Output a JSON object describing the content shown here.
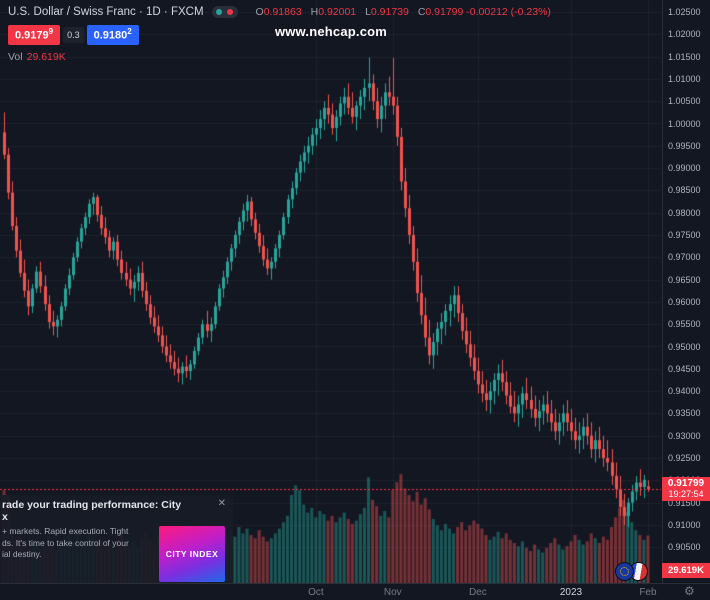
{
  "header": {
    "symbol_title": "U.S. Dollar / Swiss Franc · 1D · FXCM",
    "ohlc": {
      "o_label": "O",
      "o": "0.91863",
      "h_label": "H",
      "h": "0.92001",
      "l_label": "L",
      "l": "0.91739",
      "c_label": "C",
      "c": "0.91799",
      "change": "-0.00212 (-0.23%)"
    },
    "bid": "0.9179",
    "bid_sup": "9",
    "spread": "0.3",
    "ask": "0.9180",
    "ask_sup": "2",
    "vol_label": "Vol",
    "vol_value": "29.619K"
  },
  "watermark": "www.nehcap.com",
  "price_axis": {
    "ticks": [
      "1.02500",
      "1.02000",
      "1.01500",
      "1.01000",
      "1.00500",
      "1.00000",
      "0.99500",
      "0.99000",
      "0.98500",
      "0.98000",
      "0.97500",
      "0.97000",
      "0.96500",
      "0.96000",
      "0.95500",
      "0.95000",
      "0.94500",
      "0.94000",
      "0.93500",
      "0.93000",
      "0.92500",
      "0.92000",
      "0.91500",
      "0.91000",
      "0.90500"
    ],
    "current_price": "0.91799",
    "countdown": "19:27:54",
    "volume_badge": "29.619K"
  },
  "time_axis": {
    "ticks": [
      {
        "label": "Oct",
        "candle_index": 77
      },
      {
        "label": "Nov",
        "candle_index": 96
      },
      {
        "label": "Dec",
        "candle_index": 117
      },
      {
        "label": "2023",
        "candle_index": 140
      },
      {
        "label": "Feb",
        "candle_index": 159
      }
    ]
  },
  "ad": {
    "title_lines": [
      "rade your trading performance: City",
      "x"
    ],
    "body_lines": [
      "+ markets. Rapid execution. Tight",
      "ds. It's time to take control of your",
      "ial destiny."
    ],
    "logo_text": "CITY INDEX",
    "close_label": "✕"
  },
  "icons": {
    "gear": "⚙"
  },
  "colors": {
    "bg": "#131722",
    "up": "#26a69a",
    "down": "#ef5350",
    "accent_red": "#f23645",
    "accent_blue": "#2962ff",
    "grid": "rgba(134,142,158,0.09)"
  },
  "chart_data": {
    "type": "candlestick",
    "symbol": "USDCHF",
    "timeframe": "1D",
    "ylim": [
      0.905,
      1.025
    ],
    "price_step": 0.005,
    "candles": [
      [
        0.998,
        1.0025,
        0.992,
        0.993,
        58
      ],
      [
        0.993,
        0.9945,
        0.983,
        0.9845,
        55
      ],
      [
        0.9845,
        0.987,
        0.976,
        0.977,
        33
      ],
      [
        0.977,
        0.979,
        0.97,
        0.9715,
        28
      ],
      [
        0.9715,
        0.974,
        0.9655,
        0.9665,
        31
      ],
      [
        0.9665,
        0.9695,
        0.961,
        0.9625,
        26
      ],
      [
        0.9625,
        0.965,
        0.957,
        0.959,
        24
      ],
      [
        0.959,
        0.964,
        0.9575,
        0.963,
        22
      ],
      [
        0.963,
        0.968,
        0.962,
        0.9668,
        27
      ],
      [
        0.9668,
        0.969,
        0.962,
        0.9635,
        21
      ],
      [
        0.9635,
        0.966,
        0.958,
        0.9595,
        25
      ],
      [
        0.9595,
        0.9615,
        0.954,
        0.9555,
        29
      ],
      [
        0.9555,
        0.958,
        0.9525,
        0.9545,
        23
      ],
      [
        0.9545,
        0.957,
        0.952,
        0.956,
        20
      ],
      [
        0.956,
        0.96,
        0.9545,
        0.959,
        24
      ],
      [
        0.959,
        0.964,
        0.958,
        0.963,
        28
      ],
      [
        0.963,
        0.9675,
        0.9615,
        0.966,
        30
      ],
      [
        0.966,
        0.971,
        0.965,
        0.97,
        26
      ],
      [
        0.97,
        0.9745,
        0.969,
        0.9735,
        32
      ],
      [
        0.9735,
        0.9775,
        0.972,
        0.9765,
        27
      ],
      [
        0.9765,
        0.98,
        0.975,
        0.979,
        25
      ],
      [
        0.979,
        0.983,
        0.9775,
        0.982,
        31
      ],
      [
        0.982,
        0.9845,
        0.9795,
        0.9835,
        29
      ],
      [
        0.9835,
        0.984,
        0.978,
        0.9795,
        26
      ],
      [
        0.9795,
        0.9815,
        0.975,
        0.9765,
        28
      ],
      [
        0.9765,
        0.979,
        0.973,
        0.9745,
        22
      ],
      [
        0.9745,
        0.976,
        0.97,
        0.9715,
        25
      ],
      [
        0.9715,
        0.9745,
        0.9695,
        0.9735,
        21
      ],
      [
        0.9735,
        0.975,
        0.968,
        0.9695,
        27
      ],
      [
        0.9695,
        0.9715,
        0.965,
        0.9665,
        30
      ],
      [
        0.9665,
        0.969,
        0.9635,
        0.965,
        24
      ],
      [
        0.965,
        0.9675,
        0.9615,
        0.963,
        23
      ],
      [
        0.963,
        0.966,
        0.96,
        0.9645,
        26
      ],
      [
        0.9645,
        0.968,
        0.9625,
        0.9665,
        22
      ],
      [
        0.9665,
        0.969,
        0.961,
        0.9625,
        28
      ],
      [
        0.9625,
        0.9645,
        0.958,
        0.9595,
        31
      ],
      [
        0.9595,
        0.9615,
        0.955,
        0.9565,
        27
      ],
      [
        0.9565,
        0.959,
        0.953,
        0.9545,
        24
      ],
      [
        0.9545,
        0.957,
        0.951,
        0.9525,
        29
      ],
      [
        0.9525,
        0.9545,
        0.9485,
        0.95,
        33
      ],
      [
        0.95,
        0.9525,
        0.9465,
        0.948,
        28
      ],
      [
        0.948,
        0.9505,
        0.945,
        0.9465,
        25
      ],
      [
        0.9465,
        0.949,
        0.9435,
        0.945,
        27
      ],
      [
        0.945,
        0.9475,
        0.942,
        0.944,
        30
      ],
      [
        0.944,
        0.9465,
        0.9415,
        0.9455,
        23
      ],
      [
        0.9455,
        0.948,
        0.943,
        0.9445,
        21
      ],
      [
        0.9445,
        0.947,
        0.9425,
        0.946,
        24
      ],
      [
        0.946,
        0.95,
        0.945,
        0.949,
        27
      ],
      [
        0.949,
        0.953,
        0.948,
        0.952,
        30
      ],
      [
        0.952,
        0.956,
        0.9505,
        0.955,
        26
      ],
      [
        0.955,
        0.958,
        0.952,
        0.9535,
        23
      ],
      [
        0.9535,
        0.9565,
        0.951,
        0.955,
        25
      ],
      [
        0.955,
        0.96,
        0.954,
        0.959,
        28
      ],
      [
        0.959,
        0.964,
        0.958,
        0.963,
        32
      ],
      [
        0.963,
        0.967,
        0.961,
        0.9655,
        27
      ],
      [
        0.9655,
        0.97,
        0.964,
        0.969,
        30
      ],
      [
        0.969,
        0.973,
        0.967,
        0.972,
        33
      ],
      [
        0.972,
        0.976,
        0.97,
        0.975,
        29
      ],
      [
        0.975,
        0.979,
        0.973,
        0.978,
        35
      ],
      [
        0.978,
        0.982,
        0.976,
        0.9805,
        31
      ],
      [
        0.9805,
        0.984,
        0.978,
        0.9825,
        34
      ],
      [
        0.9825,
        0.9835,
        0.977,
        0.9785,
        30
      ],
      [
        0.9785,
        0.98,
        0.974,
        0.9755,
        28
      ],
      [
        0.9755,
        0.9775,
        0.971,
        0.9725,
        33
      ],
      [
        0.9725,
        0.975,
        0.968,
        0.9695,
        29
      ],
      [
        0.9695,
        0.972,
        0.966,
        0.9675,
        26
      ],
      [
        0.9675,
        0.97,
        0.965,
        0.969,
        28
      ],
      [
        0.969,
        0.973,
        0.9675,
        0.972,
        31
      ],
      [
        0.972,
        0.976,
        0.97,
        0.975,
        34
      ],
      [
        0.975,
        0.98,
        0.974,
        0.979,
        38
      ],
      [
        0.979,
        0.984,
        0.9775,
        0.983,
        42
      ],
      [
        0.983,
        0.987,
        0.981,
        0.9855,
        55
      ],
      [
        0.9855,
        0.99,
        0.984,
        0.989,
        61
      ],
      [
        0.989,
        0.993,
        0.987,
        0.9915,
        58
      ],
      [
        0.9915,
        0.995,
        0.989,
        0.9935,
        49
      ],
      [
        0.9935,
        0.997,
        0.991,
        0.995,
        44
      ],
      [
        0.995,
        0.999,
        0.993,
        0.9975,
        47
      ],
      [
        0.9975,
        1.001,
        0.995,
        0.999,
        41
      ],
      [
        0.999,
        1.003,
        0.9965,
        1.001,
        45
      ],
      [
        1.001,
        1.005,
        0.9985,
        1.0035,
        43
      ],
      [
        1.0035,
        1.0065,
        1.0,
        1.002,
        39
      ],
      [
        1.002,
        1.0045,
        0.9975,
        0.999,
        42
      ],
      [
        0.999,
        1.003,
        0.996,
        1.0015,
        38
      ],
      [
        1.0015,
        1.006,
        0.9995,
        1.0045,
        41
      ],
      [
        1.0045,
        1.008,
        1.002,
        1.006,
        44
      ],
      [
        1.006,
        1.009,
        1.002,
        1.0035,
        40
      ],
      [
        1.0035,
        1.007,
        1.0,
        1.0015,
        37
      ],
      [
        1.0015,
        1.005,
        0.9985,
        1.004,
        39
      ],
      [
        1.004,
        1.0075,
        1.001,
        1.006,
        43
      ],
      [
        1.006,
        1.01,
        1.003,
        1.008,
        47
      ],
      [
        1.008,
        1.0148,
        1.005,
        1.009,
        66
      ],
      [
        1.009,
        1.011,
        1.003,
        1.005,
        52
      ],
      [
        1.005,
        1.008,
        0.999,
        1.001,
        48
      ],
      [
        1.001,
        1.006,
        0.998,
        1.004,
        42
      ],
      [
        1.004,
        1.009,
        1.001,
        1.007,
        45
      ],
      [
        1.007,
        1.0105,
        1.004,
        1.006,
        41
      ],
      [
        1.006,
        1.0147,
        1.002,
        1.004,
        58
      ],
      [
        1.004,
        1.006,
        0.995,
        0.997,
        63
      ],
      [
        0.997,
        0.999,
        0.985,
        0.987,
        68
      ],
      [
        0.987,
        0.99,
        0.979,
        0.981,
        59
      ],
      [
        0.981,
        0.984,
        0.973,
        0.975,
        55
      ],
      [
        0.975,
        0.977,
        0.967,
        0.969,
        51
      ],
      [
        0.969,
        0.972,
        0.96,
        0.962,
        57
      ],
      [
        0.962,
        0.966,
        0.955,
        0.957,
        49
      ],
      [
        0.957,
        0.961,
        0.95,
        0.952,
        53
      ],
      [
        0.952,
        0.956,
        0.946,
        0.948,
        46
      ],
      [
        0.948,
        0.953,
        0.945,
        0.951,
        40
      ],
      [
        0.951,
        0.9555,
        0.948,
        0.954,
        36
      ],
      [
        0.954,
        0.9575,
        0.9505,
        0.9555,
        33
      ],
      [
        0.9555,
        0.9595,
        0.9525,
        0.958,
        37
      ],
      [
        0.958,
        0.9615,
        0.9545,
        0.9595,
        34
      ],
      [
        0.9595,
        0.9635,
        0.9565,
        0.9615,
        31
      ],
      [
        0.9615,
        0.9635,
        0.9555,
        0.9575,
        35
      ],
      [
        0.9575,
        0.9595,
        0.9515,
        0.9535,
        38
      ],
      [
        0.9535,
        0.9565,
        0.9485,
        0.9505,
        33
      ],
      [
        0.9505,
        0.9535,
        0.9455,
        0.9475,
        36
      ],
      [
        0.9475,
        0.9505,
        0.9425,
        0.9445,
        39
      ],
      [
        0.9445,
        0.9475,
        0.9395,
        0.9415,
        37
      ],
      [
        0.9415,
        0.9445,
        0.9375,
        0.9395,
        34
      ],
      [
        0.9395,
        0.9425,
        0.9355,
        0.938,
        30
      ],
      [
        0.938,
        0.942,
        0.935,
        0.94,
        27
      ],
      [
        0.94,
        0.944,
        0.937,
        0.9425,
        29
      ],
      [
        0.9425,
        0.946,
        0.939,
        0.944,
        32
      ],
      [
        0.944,
        0.947,
        0.94,
        0.942,
        28
      ],
      [
        0.942,
        0.9445,
        0.937,
        0.939,
        31
      ],
      [
        0.939,
        0.942,
        0.935,
        0.9365,
        27
      ],
      [
        0.9365,
        0.94,
        0.933,
        0.935,
        25
      ],
      [
        0.935,
        0.939,
        0.932,
        0.937,
        23
      ],
      [
        0.937,
        0.941,
        0.934,
        0.9395,
        26
      ],
      [
        0.9395,
        0.943,
        0.936,
        0.938,
        22
      ],
      [
        0.938,
        0.941,
        0.934,
        0.936,
        20
      ],
      [
        0.936,
        0.939,
        0.932,
        0.934,
        24
      ],
      [
        0.934,
        0.938,
        0.931,
        0.9355,
        21
      ],
      [
        0.9355,
        0.939,
        0.9325,
        0.937,
        19
      ],
      [
        0.937,
        0.94,
        0.933,
        0.935,
        22
      ],
      [
        0.935,
        0.938,
        0.931,
        0.933,
        25
      ],
      [
        0.933,
        0.936,
        0.929,
        0.931,
        28
      ],
      [
        0.931,
        0.935,
        0.928,
        0.933,
        24
      ],
      [
        0.933,
        0.937,
        0.93,
        0.935,
        21
      ],
      [
        0.935,
        0.938,
        0.931,
        0.933,
        23
      ],
      [
        0.933,
        0.936,
        0.929,
        0.931,
        26
      ],
      [
        0.931,
        0.934,
        0.927,
        0.929,
        30
      ],
      [
        0.929,
        0.933,
        0.926,
        0.93,
        27
      ],
      [
        0.93,
        0.934,
        0.927,
        0.932,
        24
      ],
      [
        0.932,
        0.935,
        0.928,
        0.93,
        26
      ],
      [
        0.93,
        0.933,
        0.925,
        0.927,
        31
      ],
      [
        0.927,
        0.931,
        0.924,
        0.929,
        28
      ],
      [
        0.929,
        0.932,
        0.925,
        0.927,
        25
      ],
      [
        0.927,
        0.93,
        0.923,
        0.925,
        29
      ],
      [
        0.925,
        0.929,
        0.922,
        0.924,
        27
      ],
      [
        0.924,
        0.927,
        0.919,
        0.921,
        35
      ],
      [
        0.921,
        0.924,
        0.916,
        0.918,
        41
      ],
      [
        0.918,
        0.921,
        0.912,
        0.914,
        47
      ],
      [
        0.914,
        0.917,
        0.91,
        0.912,
        52
      ],
      [
        0.912,
        0.916,
        0.9095,
        0.915,
        44
      ],
      [
        0.915,
        0.919,
        0.913,
        0.9175,
        38
      ],
      [
        0.9175,
        0.921,
        0.9155,
        0.9195,
        33
      ],
      [
        0.9195,
        0.9225,
        0.9165,
        0.9185,
        30
      ],
      [
        0.9185,
        0.9212,
        0.916,
        0.9201,
        27
      ],
      [
        0.91863,
        0.92001,
        0.91739,
        0.91799,
        29.619
      ]
    ]
  }
}
